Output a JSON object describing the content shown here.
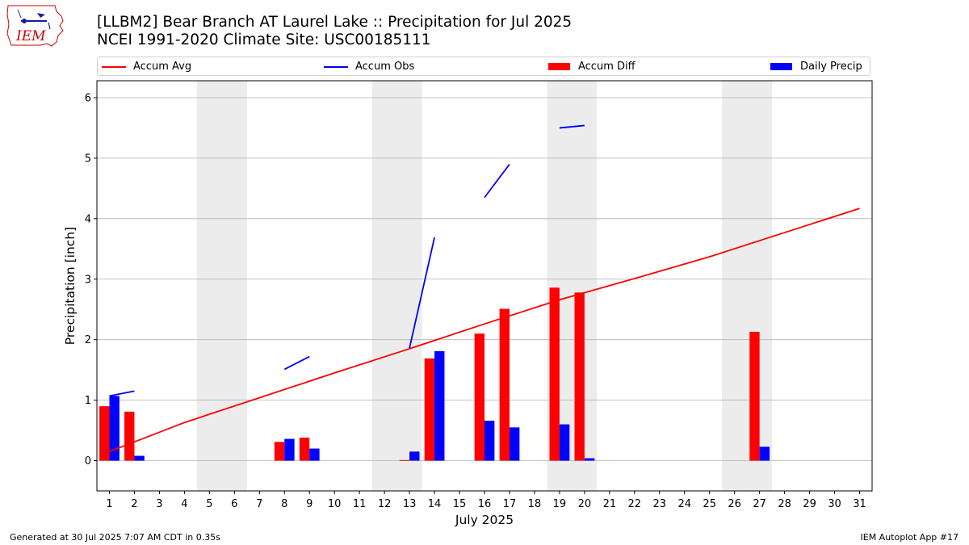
{
  "logo": {
    "text": "IEM"
  },
  "header": {
    "title_line1": "[LLBM2] Bear Branch  AT Laurel Lake :: Precipitation for Jul 2025",
    "title_line2": "NCEI 1991-2020 Climate Site: USC00185111"
  },
  "colors": {
    "accum_avg": "#ff0000",
    "accum_obs": "#0000ff",
    "accum_diff": "#ff0000",
    "daily_precip": "#0000ff",
    "weekend_shade": "#ececec",
    "grid": "#b0b0b0"
  },
  "chart_data": {
    "type": "bar",
    "title": "[LLBM2] Bear Branch  AT Laurel Lake :: Precipitation for Jul 2025",
    "subtitle": "NCEI 1991-2020 Climate Site: USC00185111",
    "xlabel": "July 2025",
    "ylabel": "Precipitation [inch]",
    "xlim": [
      0.5,
      31.5
    ],
    "ylim": [
      -0.5,
      6.28
    ],
    "yticks": [
      0,
      1,
      2,
      3,
      4,
      5,
      6
    ],
    "categories": [
      "1",
      "2",
      "3",
      "4",
      "5",
      "6",
      "7",
      "8",
      "9",
      "10",
      "11",
      "12",
      "13",
      "14",
      "15",
      "16",
      "17",
      "18",
      "19",
      "20",
      "21",
      "22",
      "23",
      "24",
      "25",
      "26",
      "27",
      "28",
      "29",
      "30",
      "31"
    ],
    "grid": true,
    "legend_position": "top",
    "shaded_days": [
      [
        5,
        6
      ],
      [
        12,
        13
      ],
      [
        19,
        20
      ],
      [
        26,
        27
      ]
    ],
    "series": [
      {
        "name": "Accum Avg",
        "kind": "line",
        "x": [
          1,
          4,
          7,
          10,
          13,
          16,
          19,
          22,
          25,
          28,
          31
        ],
        "values": [
          0.15,
          0.63,
          1.04,
          1.45,
          1.85,
          2.26,
          2.66,
          3.01,
          3.37,
          3.77,
          4.17
        ]
      },
      {
        "name": "Accum Obs",
        "kind": "line_segments",
        "segments": [
          [
            [
              1,
              1.07
            ],
            [
              2,
              1.15
            ]
          ],
          [
            [
              8,
              1.51
            ],
            [
              9,
              1.72
            ]
          ],
          [
            [
              13,
              1.86
            ],
            [
              14,
              3.69
            ]
          ],
          [
            [
              16,
              4.35
            ],
            [
              17,
              4.9
            ]
          ],
          [
            [
              19,
              5.5
            ],
            [
              20,
              5.54
            ]
          ]
        ]
      },
      {
        "name": "Accum Diff",
        "kind": "bar",
        "values": [
          0.9,
          0.81,
          null,
          null,
          null,
          null,
          null,
          0.31,
          0.38,
          null,
          null,
          null,
          0.01,
          1.69,
          null,
          2.1,
          2.51,
          null,
          2.86,
          2.78,
          null,
          null,
          null,
          null,
          null,
          null,
          2.13,
          null,
          null,
          null,
          null
        ]
      },
      {
        "name": "Daily Precip",
        "kind": "bar",
        "values": [
          1.07,
          0.08,
          null,
          null,
          null,
          null,
          null,
          0.36,
          0.2,
          null,
          null,
          null,
          0.15,
          1.81,
          null,
          0.66,
          0.55,
          null,
          0.6,
          0.04,
          null,
          null,
          null,
          null,
          null,
          null,
          0.23,
          null,
          null,
          null,
          null
        ]
      }
    ]
  },
  "footer": {
    "left": "Generated at 30 Jul 2025 7:07 AM CDT in 0.35s",
    "right": "IEM Autoplot App #17"
  }
}
